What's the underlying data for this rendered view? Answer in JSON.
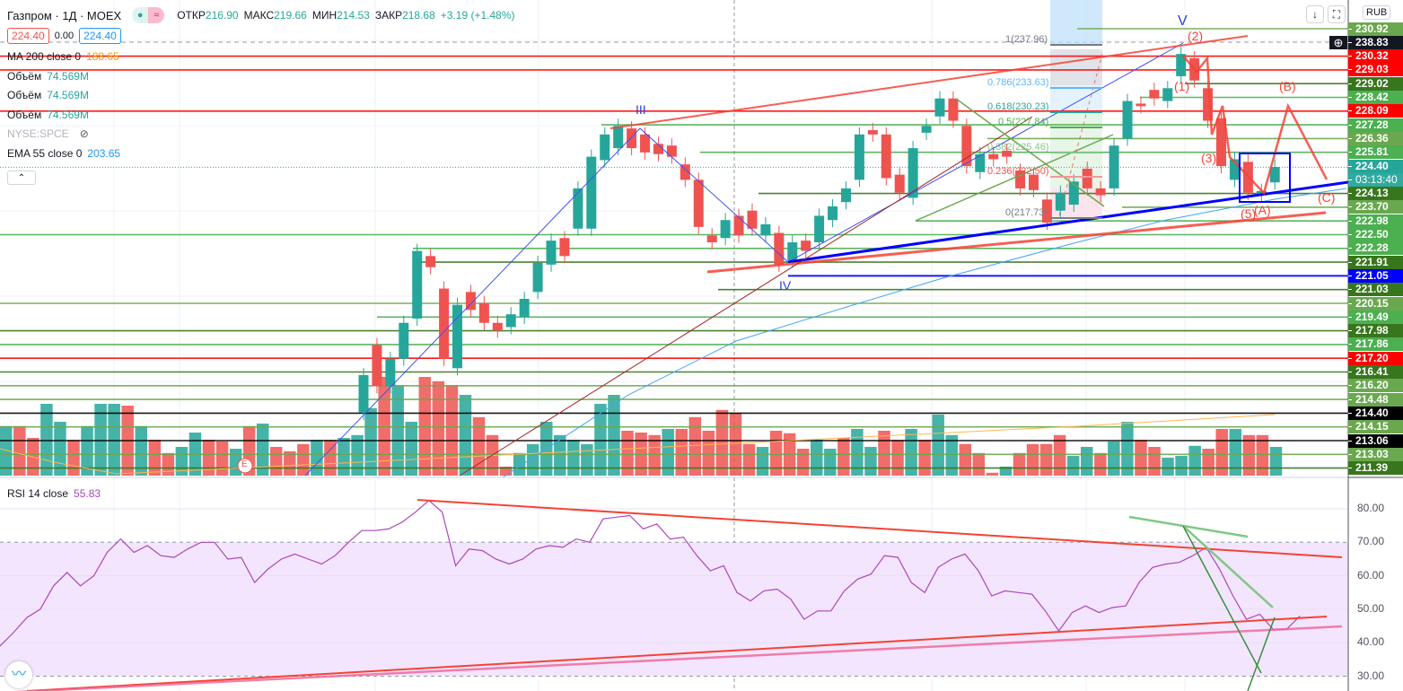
{
  "header": {
    "symbol": "Газпром · 1Д · MOEX",
    "open_label": "ОТКР",
    "open": "216.90",
    "high_label": "МАКС",
    "high": "219.66",
    "low_label": "МИН",
    "low": "214.53",
    "close_label": "ЗАКР",
    "close": "218.68",
    "change": "+3.19 (+1.48%)",
    "sell": "224.40",
    "spread": "0.00",
    "buy": "224.40"
  },
  "indicators": [
    {
      "name": "MA 200 close 0",
      "value": "188.65",
      "color": "#ff9800"
    },
    {
      "name": "Объём",
      "value": "74.569M",
      "color": "#26a69a"
    },
    {
      "name": "Объём",
      "value": "74.569M",
      "color": "#26a69a"
    },
    {
      "name": "Объём",
      "value": "74.569M",
      "color": "#26a69a"
    },
    {
      "name": "NYSE:SPCE",
      "value": "",
      "color": "#b2b5be"
    },
    {
      "name": "EMA 55 close 0",
      "value": "203.65",
      "color": "#2196f3"
    }
  ],
  "rsi": {
    "name": "RSI 14 close",
    "value": "55.83",
    "ticks": [
      "80.00",
      "70.00",
      "60.00",
      "50.00",
      "40.00",
      "30.00"
    ],
    "series": [
      39,
      43,
      47.5,
      50,
      57,
      61,
      57,
      60,
      67,
      71,
      67,
      69,
      66,
      65.5,
      68,
      70,
      70,
      65,
      65.5,
      58,
      62,
      65,
      66.5,
      65,
      63.5,
      66,
      70,
      73.5,
      73.5,
      74,
      76,
      79,
      82.5,
      79,
      63,
      68,
      67.5,
      65,
      63.5,
      65,
      68,
      69,
      68.5,
      71,
      70,
      77,
      77.5,
      78,
      74,
      75.5,
      71,
      71.5,
      66,
      61.5,
      63,
      55,
      52.5,
      55.5,
      56,
      53,
      47,
      49.5,
      49.5,
      55.5,
      59,
      60.5,
      66,
      65.5,
      58,
      55,
      62.5,
      65,
      66.5,
      61.5,
      54,
      55.5,
      55,
      54.5,
      49.5,
      43.5,
      49,
      51,
      49,
      50.5,
      51,
      58,
      62.5,
      63.5,
      64,
      66,
      68.5,
      62,
      54,
      47,
      48.5,
      44,
      44,
      48
    ]
  },
  "currency": "RUB",
  "current": {
    "price": "224.40",
    "countdown": "03:13:40"
  },
  "crosshair_price": "238.83",
  "price_labels": [
    {
      "v": "230.92",
      "c": "#6aa84f"
    },
    {
      "v": "238.83",
      "c": "#131722"
    },
    {
      "v": "230.32",
      "c": "#ff0000"
    },
    {
      "v": "229.03",
      "c": "#ff0000"
    },
    {
      "v": "229.02",
      "c": "#38761d"
    },
    {
      "v": "228.42",
      "c": "#4caf50"
    },
    {
      "v": "228.09",
      "c": "#ff0000"
    },
    {
      "v": "227.28",
      "c": "#4caf50"
    },
    {
      "v": "226.36",
      "c": "#6aa84f"
    },
    {
      "v": "225.81",
      "c": "#4caf50"
    },
    {
      "v": "224.40",
      "c": "#26a69a"
    },
    {
      "v": "03:13:40",
      "c": "#26a69a"
    },
    {
      "v": "224.13",
      "c": "#38761d"
    },
    {
      "v": "223.70",
      "c": "#6aa84f"
    },
    {
      "v": "222.98",
      "c": "#4caf50"
    },
    {
      "v": "222.50",
      "c": "#4caf50"
    },
    {
      "v": "222.28",
      "c": "#4caf50"
    },
    {
      "v": "221.91",
      "c": "#38761d"
    },
    {
      "v": "221.05",
      "c": "#0000ff"
    },
    {
      "v": "221.03",
      "c": "#38761d"
    },
    {
      "v": "220.15",
      "c": "#6aa84f"
    },
    {
      "v": "219.49",
      "c": "#4caf50"
    },
    {
      "v": "217.98",
      "c": "#38761d"
    },
    {
      "v": "217.86",
      "c": "#4caf50"
    },
    {
      "v": "217.20",
      "c": "#ff0000"
    },
    {
      "v": "216.41",
      "c": "#38761d"
    },
    {
      "v": "216.20",
      "c": "#6aa84f"
    },
    {
      "v": "214.48",
      "c": "#6aa84f"
    },
    {
      "v": "214.40",
      "c": "#000000"
    },
    {
      "v": "214.15",
      "c": "#6aa84f"
    },
    {
      "v": "213.06",
      "c": "#000000"
    },
    {
      "v": "213.03",
      "c": "#6aa84f"
    },
    {
      "v": "211.39",
      "c": "#38761d"
    }
  ],
  "fib": [
    {
      "t": "1(237.96)"
    },
    {
      "t": "0.786(233.63)"
    },
    {
      "t": "0.618(230.23)"
    },
    {
      "t": "0.5(227.84)"
    },
    {
      "t": "0.382(225.46)"
    },
    {
      "t": "0.236(222.50)"
    },
    {
      "t": "0(217.73)"
    }
  ],
  "waves": {
    "V": "V",
    "III": "III",
    "IV": "IV",
    "w1": "(1)",
    "w2": "(2)",
    "w3": "(3)",
    "w5": "(5)",
    "A": "(A)",
    "B": "(B)",
    "C": "(C)"
  },
  "earnings_marker": "E",
  "colors": {
    "up": "#26a69a",
    "down": "#ef5350",
    "vol_up": "#26a69a",
    "vol_down": "#ef5350",
    "rsi": "#ab47bc"
  },
  "chart_data": {
    "type": "candlestick",
    "symbol": "Газпром",
    "timeframe": "1Д",
    "ohlc_order": [
      "o",
      "c"
    ],
    "candles": [
      [
        195.0,
        199.4
      ],
      [
        202.9,
        198.1
      ],
      [
        198.1,
        201.3
      ],
      [
        201.3,
        205.5
      ],
      [
        206.0,
        213.9
      ],
      [
        213.3,
        212.0
      ],
      [
        209.5,
        201.3
      ],
      [
        200.2,
        207.6
      ],
      [
        209.1,
        207.0
      ],
      [
        207.8,
        205.5
      ],
      [
        205.5,
        204.6
      ],
      [
        205.0,
        206.5
      ],
      [
        206.2,
        208.3
      ],
      [
        209.1,
        212.5
      ],
      [
        212.3,
        215.1
      ],
      [
        215.4,
        213.3
      ],
      [
        216.5,
        221.2
      ],
      [
        216.5,
        224.9
      ],
      [
        224.5,
        227.5
      ],
      [
        225.9,
        228.5
      ],
      [
        228.2,
        225.9
      ],
      [
        227.5,
        225.4
      ],
      [
        226.4,
        225.2
      ],
      [
        226.2,
        224.9
      ],
      [
        224.0,
        222.2
      ],
      [
        222.2,
        216.7
      ],
      [
        215.7,
        214.9
      ],
      [
        215.4,
        217.5
      ],
      [
        218.0,
        215.7
      ],
      [
        218.6,
        216.5
      ],
      [
        215.7,
        217.0
      ],
      [
        216.0,
        212.3
      ],
      [
        212.8,
        214.9
      ],
      [
        215.1,
        213.9
      ],
      [
        214.9,
        218.0
      ],
      [
        217.5,
        219.1
      ],
      [
        219.6,
        221.2
      ],
      [
        222.2,
        227.5
      ],
      [
        228.0,
        227.5
      ],
      [
        227.5,
        222.4
      ],
      [
        222.8,
        220.7
      ],
      [
        220.1,
        225.9
      ],
      [
        227.7,
        228.5
      ],
      [
        229.6,
        231.7
      ],
      [
        231.7,
        229.1
      ],
      [
        228.5,
        223.8
      ],
      [
        223.1,
        225.2
      ],
      [
        225.2,
        224.6
      ],
      [
        225.6,
        224.9
      ],
      [
        223.3,
        221.2
      ],
      [
        222.8,
        221.0
      ],
      [
        219.9,
        217.2
      ],
      [
        218.6,
        220.7
      ],
      [
        219.3,
        222.0
      ],
      [
        223.5,
        221.2
      ],
      [
        221.2,
        220.4
      ],
      [
        221.2,
        226.2
      ],
      [
        227.0,
        231.4
      ],
      [
        231.1,
        230.8
      ],
      [
        232.7,
        231.7
      ],
      [
        231.4,
        232.9
      ],
      [
        234.3,
        236.9
      ],
      [
        236.4,
        233.8
      ],
      [
        232.9,
        229.1
      ],
      [
        229.4,
        223.8
      ],
      [
        222.2,
        224.6
      ],
      [
        224.3,
        220.7
      ],
      [
        220.4,
        220.9
      ],
      [
        221.9,
        223.7
      ]
    ],
    "volume_m": [
      [
        138,
        1
      ],
      [
        138,
        0
      ],
      [
        105,
        0
      ],
      [
        200,
        1
      ],
      [
        150,
        1
      ],
      [
        100,
        0
      ],
      [
        138,
        1
      ],
      [
        200,
        1
      ],
      [
        200,
        1
      ],
      [
        195,
        0
      ],
      [
        138,
        1
      ],
      [
        100,
        0
      ],
      [
        63,
        0
      ],
      [
        80,
        1
      ],
      [
        120,
        1
      ],
      [
        100,
        0
      ],
      [
        95,
        0
      ],
      [
        75,
        1
      ],
      [
        138,
        0
      ],
      [
        145,
        1
      ],
      [
        80,
        0
      ],
      [
        68,
        0
      ],
      [
        88,
        0
      ],
      [
        100,
        1
      ],
      [
        100,
        0
      ],
      [
        105,
        1
      ],
      [
        113,
        1
      ],
      [
        188,
        1
      ],
      [
        275,
        0
      ],
      [
        250,
        1
      ],
      [
        150,
        1
      ],
      [
        275,
        0
      ],
      [
        263,
        0
      ],
      [
        250,
        0
      ],
      [
        225,
        1
      ],
      [
        163,
        0
      ],
      [
        113,
        0
      ],
      [
        25,
        0
      ],
      [
        63,
        1
      ],
      [
        88,
        1
      ],
      [
        150,
        1
      ],
      [
        113,
        1
      ],
      [
        100,
        1
      ],
      [
        88,
        1
      ],
      [
        200,
        1
      ],
      [
        225,
        1
      ],
      [
        125,
        0
      ],
      [
        120,
        0
      ],
      [
        113,
        0
      ],
      [
        130,
        1
      ],
      [
        130,
        0
      ],
      [
        163,
        0
      ],
      [
        125,
        0
      ],
      [
        183,
        0
      ],
      [
        175,
        0
      ],
      [
        88,
        0
      ],
      [
        80,
        1
      ],
      [
        125,
        0
      ],
      [
        118,
        0
      ],
      [
        75,
        0
      ],
      [
        100,
        1
      ],
      [
        75,
        1
      ],
      [
        105,
        0
      ],
      [
        130,
        1
      ],
      [
        80,
        1
      ],
      [
        125,
        0
      ],
      [
        100,
        0
      ],
      [
        130,
        1
      ],
      [
        100,
        0
      ],
      [
        170,
        1
      ],
      [
        113,
        1
      ],
      [
        88,
        0
      ],
      [
        63,
        0
      ],
      [
        8,
        0
      ],
      [
        25,
        1
      ],
      [
        63,
        0
      ],
      [
        88,
        0
      ],
      [
        88,
        0
      ],
      [
        113,
        0
      ],
      [
        55,
        1
      ],
      [
        80,
        1
      ],
      [
        63,
        0
      ],
      [
        95,
        1
      ],
      [
        150,
        1
      ],
      [
        100,
        0
      ],
      [
        80,
        0
      ],
      [
        50,
        1
      ],
      [
        55,
        1
      ],
      [
        83,
        1
      ],
      [
        75,
        0
      ],
      [
        130,
        0
      ],
      [
        130,
        1
      ],
      [
        113,
        0
      ],
      [
        113,
        0
      ],
      [
        80,
        1
      ]
    ],
    "rsi_range": [
      25,
      88
    ]
  }
}
